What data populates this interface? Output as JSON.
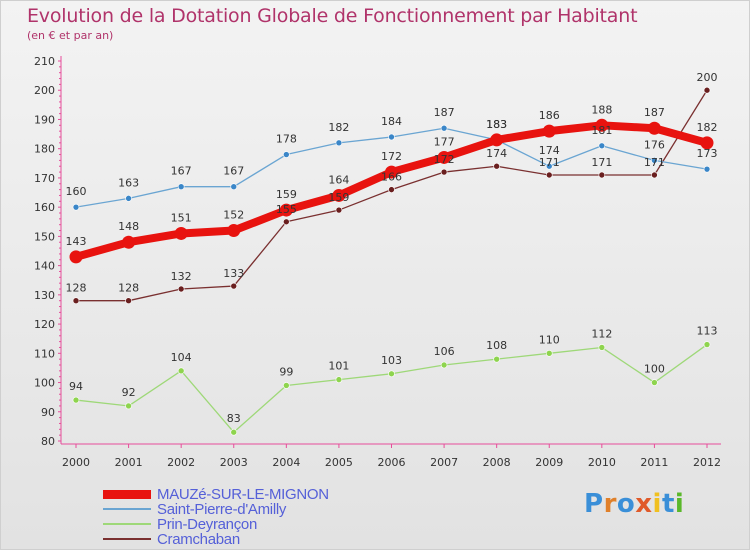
{
  "title": "Evolution de la Dotation Globale de Fonctionnement par Habitant",
  "subtitle": "(en € et par an)",
  "logo": {
    "text": "Proxiti",
    "colors": [
      "#3a8fd8",
      "#e0802a",
      "#3a8fd8",
      "#e05a2a",
      "#f0c020",
      "#3a8fd8",
      "#5ab82a"
    ]
  },
  "chart_data": {
    "type": "line",
    "title": "Evolution de la Dotation Globale de Fonctionnement par Habitant",
    "subtitle": "(en € et par an)",
    "xlabel": "",
    "ylabel": "",
    "x": [
      "2000",
      "2001",
      "2002",
      "2003",
      "2004",
      "2005",
      "2006",
      "2007",
      "2008",
      "2009",
      "2010",
      "2011",
      "2012"
    ],
    "ylim": [
      80,
      210
    ],
    "yticks": [
      80,
      90,
      100,
      110,
      120,
      130,
      140,
      150,
      160,
      170,
      180,
      190,
      200,
      210
    ],
    "grid": false,
    "legend_position": "bottom-left",
    "series": [
      {
        "name": "MAUZé-SUR-LE-MIGNON",
        "color": "#e8130f",
        "marker": "#e8130f",
        "width": "thick",
        "values": [
          143,
          148,
          151,
          152,
          159,
          164,
          172,
          177,
          183,
          186,
          188,
          187,
          182
        ]
      },
      {
        "name": "Saint-Pierre-d'Amilly",
        "color": "#6aa5d2",
        "marker": "#3a86c8",
        "width": "thin",
        "values": [
          160,
          163,
          167,
          167,
          178,
          182,
          184,
          187,
          183,
          174,
          181,
          176,
          173
        ]
      },
      {
        "name": "Prin-Deyrançon",
        "color": "#9ed878",
        "marker": "#8ed44e",
        "width": "thin",
        "values": [
          94,
          92,
          104,
          83,
          99,
          101,
          103,
          106,
          108,
          110,
          112,
          100,
          113
        ]
      },
      {
        "name": "Cramchaban",
        "color": "#7a3030",
        "marker": "#6a1f1f",
        "width": "thin",
        "values": [
          128,
          128,
          132,
          133,
          155,
          159,
          166,
          172,
          174,
          171,
          171,
          171,
          200
        ]
      }
    ],
    "data_labels": [
      {
        "series": 0,
        "labels": [
          "143",
          "148",
          "151",
          "152",
          "159",
          "164",
          "172",
          "177",
          "183",
          "186",
          "188",
          "187",
          "182"
        ]
      },
      {
        "series": 1,
        "labels": [
          "160",
          "163",
          "167",
          "167",
          "178",
          "182",
          "184",
          "187",
          "183",
          "174",
          "181",
          "176",
          "173"
        ]
      },
      {
        "series": 2,
        "labels": [
          "94",
          "92",
          "104",
          "83",
          "99",
          "101",
          "103",
          "106",
          "108",
          "110",
          "112",
          "100",
          "113"
        ]
      },
      {
        "series": 3,
        "labels": [
          "128",
          "128",
          "132",
          "133",
          "155",
          "159",
          "166",
          "172",
          "174",
          "171",
          "171",
          "171",
          "200"
        ]
      }
    ]
  }
}
